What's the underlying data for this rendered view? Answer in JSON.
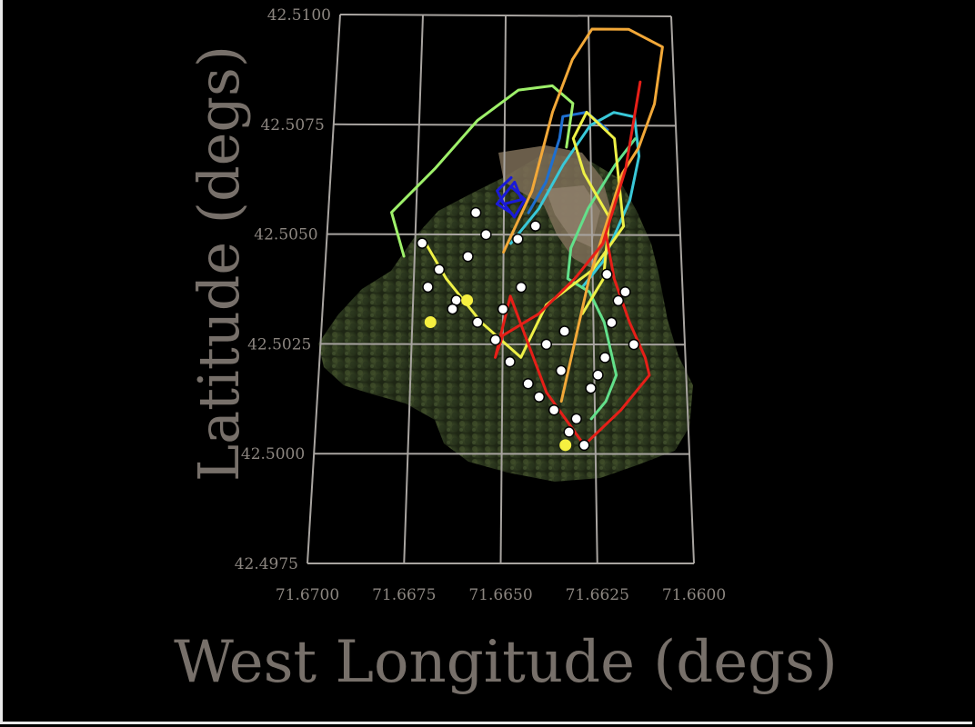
{
  "chart_data": {
    "type": "line",
    "xlabel": "West Longitude (degs)",
    "ylabel": "Latitude (degs)",
    "xlim": [
      71.67,
      71.66
    ],
    "ylim": [
      42.4975,
      42.51
    ],
    "x_ticks": [
      "71.6700",
      "71.6675",
      "71.6650",
      "71.6625",
      "71.6600"
    ],
    "y_ticks": [
      "42.4975",
      "42.5000",
      "42.5025",
      "42.5050",
      "42.5075",
      "42.5100"
    ],
    "grid": true,
    "background": "aerial forest imagery",
    "series": [
      {
        "color": "#1a1ad8",
        "x": [
          71.6648,
          71.6652,
          71.665,
          71.6645,
          71.6647,
          71.6651,
          71.6647,
          71.6644,
          71.6648,
          71.6652,
          71.6648
        ],
        "y": [
          42.5063,
          42.506,
          42.5057,
          42.5058,
          42.5062,
          42.5058,
          42.5054,
          42.5058,
          42.5061,
          42.5057,
          42.5055
        ]
      },
      {
        "color": "#1e6fd0",
        "x": [
          71.6643,
          71.6638,
          71.6634,
          71.6633,
          71.6626,
          71.662
        ],
        "y": [
          42.5055,
          42.5062,
          42.5072,
          42.5077,
          42.5078,
          42.5074
        ]
      },
      {
        "color": "#39c8d8",
        "x": [
          71.6648,
          71.664,
          71.6633,
          71.6625,
          71.6618,
          71.6612,
          71.6611,
          71.6614,
          71.6622,
          71.6628
        ],
        "y": [
          42.5048,
          42.5056,
          42.5066,
          42.5075,
          42.5078,
          42.5077,
          42.5068,
          42.5058,
          42.5044,
          42.5038
        ]
      },
      {
        "color": "#63e08a",
        "x": [
          71.6612,
          71.6618,
          71.6626,
          71.6631,
          71.6632,
          71.6626,
          71.6622,
          71.6619,
          71.6622,
          71.6626
        ],
        "y": [
          42.5072,
          42.5066,
          42.5056,
          42.5047,
          42.504,
          42.5037,
          42.503,
          42.5018,
          42.5012,
          42.5008
        ]
      },
      {
        "color": "#9ef06a",
        "x": [
          71.6678,
          71.6682,
          71.667,
          71.6658,
          71.6646,
          71.6636,
          71.663,
          71.6632
        ],
        "y": [
          42.5045,
          42.5055,
          42.5065,
          42.5076,
          42.5083,
          42.5084,
          42.508,
          42.507
        ]
      },
      {
        "color": "#eef046",
        "x": [
          71.6672,
          71.6666,
          71.6656,
          71.6645,
          71.6638,
          71.6625,
          71.6616,
          71.6618,
          71.6626,
          71.663,
          71.6627,
          71.662,
          71.6622,
          71.6628
        ],
        "y": [
          42.5048,
          42.504,
          42.503,
          42.5022,
          42.5034,
          42.5042,
          42.5052,
          42.5072,
          42.5078,
          42.5072,
          42.5064,
          42.5054,
          42.504,
          42.5032
        ]
      },
      {
        "color": "#f2a838",
        "x": [
          71.665,
          71.6642,
          71.6636,
          71.663,
          71.6624,
          71.6613,
          71.6603,
          71.6606,
          71.6611,
          71.6616,
          71.6626,
          71.6634
        ],
        "y": [
          42.5046,
          42.506,
          42.5078,
          42.509,
          42.5097,
          42.5097,
          42.5093,
          42.508,
          42.507,
          42.5064,
          42.504,
          42.5012
        ]
      },
      {
        "color": "#e61f18",
        "x": [
          71.661,
          71.6615,
          71.6622,
          71.663,
          71.664,
          71.665,
          71.6652,
          71.6648,
          71.6638,
          71.6628,
          71.6618,
          71.661,
          71.6611,
          71.6615,
          71.6619,
          71.6621
        ],
        "y": [
          42.5085,
          42.5065,
          42.5048,
          42.504,
          42.5032,
          42.5027,
          42.5022,
          42.5036,
          42.5014,
          42.5002,
          42.501,
          42.5018,
          42.5022,
          42.503,
          42.504,
          42.505
        ]
      }
    ],
    "markers": {
      "color": "#ffffff",
      "x": [
        71.6673,
        71.6668,
        71.6663,
        71.6657,
        71.6652,
        71.6648,
        71.6643,
        71.664,
        71.6636,
        71.6632,
        71.6628,
        71.6624,
        71.662,
        71.6616,
        71.6614,
        71.666,
        71.6655,
        71.6645,
        71.6638,
        71.663,
        71.6626,
        71.6622,
        71.6618,
        71.665,
        71.6671,
        71.6641,
        71.6634,
        71.6621,
        71.6633,
        71.6646,
        71.6664,
        71.6658
      ],
      "y": [
        42.5048,
        42.5042,
        42.5035,
        42.503,
        42.5026,
        42.5021,
        42.5016,
        42.5013,
        42.501,
        42.5005,
        42.5002,
        42.5018,
        42.503,
        42.5037,
        42.5025,
        42.5045,
        42.505,
        42.5038,
        42.5025,
        42.5008,
        42.5015,
        42.5022,
        42.5035,
        42.5033,
        42.5038,
        42.5052,
        42.5019,
        42.5041,
        42.5028,
        42.5049,
        42.5033,
        42.5055
      ]
    },
    "highlight_markers": {
      "color": "#f6f040",
      "x": [
        71.667,
        71.666,
        71.6633
      ],
      "y": [
        42.503,
        42.5035,
        42.5002
      ]
    }
  }
}
